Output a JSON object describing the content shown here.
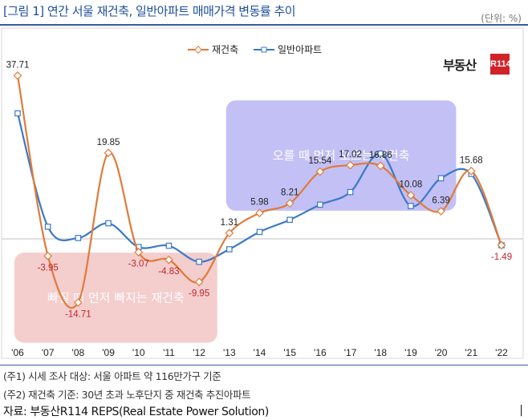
{
  "header": {
    "title": "[그림 1] 연간 서울 재건축, 일반아파트 매매가격 변동률 추이",
    "unit": "(단위: %)"
  },
  "logo": {
    "text": "부동산",
    "badge": "R114"
  },
  "chart_data": {
    "type": "line",
    "categories": [
      "'06",
      "'07",
      "'08",
      "'09",
      "'10",
      "'11",
      "'12",
      "'13",
      "'14",
      "'15",
      "'16",
      "'17",
      "'18",
      "'19",
      "'20",
      "'21",
      "'22"
    ],
    "series": [
      {
        "name": "재건축",
        "color": "#e07b39",
        "values": [
          37.71,
          -3.95,
          -14.71,
          19.85,
          -3.07,
          -4.83,
          -9.95,
          1.31,
          5.98,
          8.21,
          15.54,
          17.02,
          16.86,
          10.08,
          6.39,
          15.68,
          -1.49
        ]
      },
      {
        "name": "일반아파트",
        "color": "#3a79c8",
        "values": [
          29.0,
          2.8,
          0.2,
          3.6,
          -1.9,
          -1.6,
          -5.3,
          -2.4,
          1.6,
          4.4,
          7.9,
          10.8,
          19.7,
          7.6,
          14.0,
          15.0,
          -1.49
        ]
      }
    ],
    "data_labels": [
      {
        "text": "37.71",
        "index": 0,
        "value": 37.71,
        "color": "#222"
      },
      {
        "text": "-3.95",
        "index": 1,
        "value": -3.95,
        "color": "#c0282d"
      },
      {
        "text": "-14.71",
        "index": 2,
        "value": -14.71,
        "color": "#c0282d"
      },
      {
        "text": "19.85",
        "index": 3,
        "value": 19.85,
        "color": "#222"
      },
      {
        "text": "-3.07",
        "index": 4,
        "value": -3.07,
        "color": "#c0282d"
      },
      {
        "text": "-4.83",
        "index": 5,
        "value": -4.83,
        "color": "#c0282d"
      },
      {
        "text": "-9.95",
        "index": 6,
        "value": -9.95,
        "color": "#c0282d"
      },
      {
        "text": "1.31",
        "index": 7,
        "value": 1.31,
        "color": "#222"
      },
      {
        "text": "5.98",
        "index": 8,
        "value": 5.98,
        "color": "#222"
      },
      {
        "text": "8.21",
        "index": 9,
        "value": 8.21,
        "color": "#222"
      },
      {
        "text": "15.54",
        "index": 10,
        "value": 15.54,
        "color": "#222"
      },
      {
        "text": "17.02",
        "index": 11,
        "value": 17.02,
        "color": "#222"
      },
      {
        "text": "16.86",
        "index": 12,
        "value": 16.86,
        "color": "#222"
      },
      {
        "text": "10.08",
        "index": 13,
        "value": 10.08,
        "color": "#222"
      },
      {
        "text": "6.39",
        "index": 14,
        "value": 6.39,
        "color": "#222"
      },
      {
        "text": "15.68",
        "index": 15,
        "value": 15.68,
        "color": "#222"
      },
      {
        "text": "-1.49",
        "index": 16,
        "value": -1.49,
        "color": "#c0282d"
      }
    ],
    "ylim": [
      -25,
      45
    ],
    "annotations": [
      {
        "text": "빠질 때 먼저 빠지는 재건축",
        "color": "#f2c4c4",
        "from_index": 0,
        "to_index": 6.6,
        "y_from": -24,
        "y_to": -3.2
      },
      {
        "text": "오를 때 먼저 오르는 재건축",
        "color": "#b9b5f5",
        "from_index": 7,
        "to_index": 14.5,
        "y_from": 6.5,
        "y_to": 32
      }
    ],
    "legend_position": "top-center"
  },
  "notes": {
    "note1": "(주1) 시세 조사 대상: 서울 아파트 약 116만가구 기준",
    "note2": "(주2) 재건축 기준: 30년 초과 노후단지 중 재건축 추진아파트",
    "source": "자료: 부동산R114 REPS(Real Estate Power Solution)"
  }
}
